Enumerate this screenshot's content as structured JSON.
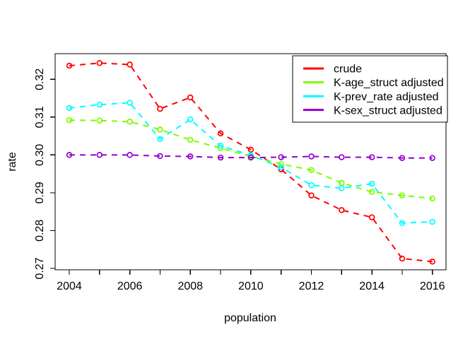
{
  "figure": {
    "background": "#ffffff",
    "border_color": "#000000",
    "text_color": "#000000"
  },
  "chart_data": {
    "type": "line",
    "title": "",
    "xlabel": "population",
    "ylabel": "rate",
    "grid": false,
    "legend_position": "top-right",
    "line_style": "dashed",
    "marker": "open-circle",
    "xlim": [
      2003.5,
      2016.5
    ],
    "ylim": [
      0.27,
      0.325
    ],
    "x": [
      2004,
      2005,
      2006,
      2007,
      2008,
      2009,
      2010,
      2011,
      2012,
      2013,
      2014,
      2015,
      2016
    ],
    "x_axis": {
      "ticks": [
        2004,
        2005,
        2006,
        2007,
        2008,
        2009,
        2010,
        2011,
        2012,
        2013,
        2014,
        2015,
        2016
      ],
      "labels": [
        {
          "value": 2004,
          "text": "2004"
        },
        {
          "value": 2006,
          "text": "2006"
        },
        {
          "value": 2008,
          "text": "2008"
        },
        {
          "value": 2010,
          "text": "2010"
        },
        {
          "value": 2012,
          "text": "2012"
        },
        {
          "value": 2014,
          "text": "2014"
        },
        {
          "value": 2016,
          "text": "2016"
        }
      ]
    },
    "y_axis": {
      "ticks": [
        0.27,
        0.28,
        0.29,
        0.3,
        0.31,
        0.32
      ],
      "labels": [
        {
          "value": 0.27,
          "text": "0.27"
        },
        {
          "value": 0.28,
          "text": "0.28"
        },
        {
          "value": 0.29,
          "text": "0.29"
        },
        {
          "value": 0.3,
          "text": "0.30"
        },
        {
          "value": 0.31,
          "text": "0.31"
        },
        {
          "value": 0.32,
          "text": "0.32"
        }
      ]
    },
    "series": [
      {
        "name": "crude",
        "color": "#FF0000",
        "values": [
          0.3236,
          0.3243,
          0.3239,
          0.3122,
          0.3152,
          0.3057,
          0.3014,
          0.2962,
          0.2893,
          0.2854,
          0.2835,
          0.2726,
          0.2718
        ]
      },
      {
        "name": "K-age_struct adjusted",
        "color": "#7CFC00",
        "values": [
          0.3092,
          0.3091,
          0.3088,
          0.3067,
          0.304,
          0.3018,
          0.2996,
          0.2976,
          0.296,
          0.2926,
          0.2902,
          0.2893,
          0.2885
        ]
      },
      {
        "name": "K-prev_rate adjusted",
        "color": "#00FFFF",
        "values": [
          0.3124,
          0.3133,
          0.3138,
          0.3042,
          0.3094,
          0.3024,
          0.2999,
          0.2967,
          0.292,
          0.2912,
          0.2924,
          0.282,
          0.2823
        ]
      },
      {
        "name": "K-sex_struct adjusted",
        "color": "#9400D3",
        "values": [
          0.3,
          0.3,
          0.3,
          0.2997,
          0.2996,
          0.2993,
          0.2993,
          0.2994,
          0.2996,
          0.2994,
          0.2994,
          0.2992,
          0.2992
        ]
      }
    ]
  }
}
